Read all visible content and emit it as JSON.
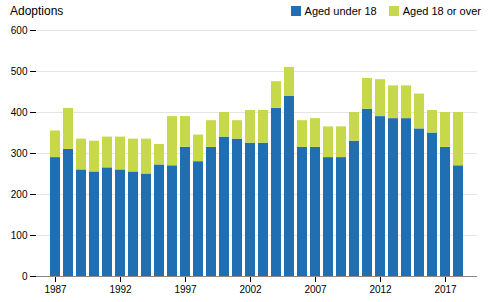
{
  "chart_data": {
    "type": "bar",
    "stacked": true,
    "title": "Adoptions",
    "categories": [
      "1987",
      null,
      null,
      null,
      null,
      "1992",
      null,
      null,
      null,
      null,
      "1997",
      null,
      null,
      null,
      null,
      "2002",
      null,
      null,
      null,
      null,
      "2007",
      null,
      null,
      null,
      null,
      "2012",
      null,
      null,
      null,
      null,
      "2017",
      null
    ],
    "series": [
      {
        "name": "Aged under 18",
        "color": "#1f6fb2",
        "values": [
          290,
          310,
          260,
          255,
          265,
          260,
          255,
          250,
          272,
          270,
          315,
          280,
          315,
          340,
          335,
          325,
          325,
          410,
          440,
          315,
          315,
          290,
          290,
          330,
          408,
          390,
          385,
          385,
          360,
          350,
          315,
          270
        ]
      },
      {
        "name": "Aged 18 or over",
        "color": "#c8d84b",
        "values": [
          65,
          100,
          75,
          75,
          75,
          80,
          80,
          85,
          50,
          120,
          75,
          65,
          65,
          60,
          45,
          80,
          80,
          65,
          70,
          65,
          70,
          75,
          75,
          70,
          75,
          90,
          80,
          80,
          85,
          55,
          85,
          130
        ]
      }
    ],
    "ylim": [
      0,
      600
    ],
    "yticks": [
      0,
      100,
      200,
      300,
      400,
      500,
      600
    ],
    "grid": true,
    "legend": "upper right"
  }
}
